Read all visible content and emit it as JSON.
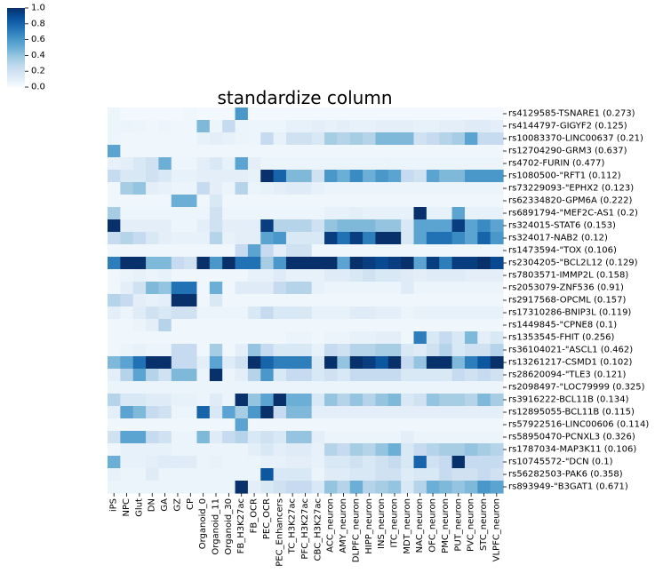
{
  "chart_data": {
    "type": "heatmap",
    "title": "standardize column",
    "colormap": "Blues",
    "colorbar": {
      "min": 0.0,
      "max": 1.0,
      "ticks": [
        "0.0",
        "0.2",
        "0.4",
        "0.6",
        "0.8",
        "1.0"
      ]
    },
    "columns": [
      "iPS",
      "NPC",
      "Glut",
      "DN",
      "GA",
      "GZ",
      "CP",
      "Organoid_0",
      "Organoid_11",
      "Organoid_30",
      "FB_H3K27ac",
      "FB_OCR",
      "PEC_OCR",
      "PEC_Enhancers",
      "TC_H3K27ac",
      "PFC_H3K27ac",
      "CBC_H3K27ac",
      "ACC_neuron",
      "AMY_neuron",
      "DLPFC_neuron",
      "HIPP_neuron",
      "INS_neuron",
      "ITC_neuron",
      "MDT_neuron",
      "NAC_neuron",
      "OFC_neuron",
      "PMC_neuron",
      "PUT_neuron",
      "PVC_neuron",
      "STC_neuron",
      "VLPFC_neuron"
    ],
    "rows": [
      "rs4129585-TSNARE1 (0.273)",
      "rs4144797-GIGYF2 (0.125)",
      "rs10083370-LINC00637 (0.21)",
      "rs12704290-GRM3 (0.637)",
      "rs4702-FURIN (0.477)",
      "rs1080500-\"RFT1 (0.112)",
      "rs73229093-\"EPHX2 (0.123)",
      "rs62334820-GPM6A (0.222)",
      "rs6891794-\"MEF2C-AS1 (0.2)",
      "rs324015-STAT6 (0.153)",
      "rs324017-NAB2 (0.12)",
      "rs1473594-\"TOX (0.106)",
      "rs2304205-\"BCL2L12 (0.129)",
      "rs7803571-IMMP2L (0.158)",
      "rs2053079-ZNF536 (0.91)",
      "rs2917568-OPCML (0.157)",
      "rs17310286-BNIP3L (0.119)",
      "rs1449845-\"CPNE8 (0.1)",
      "rs1353545-FHIT (0.256)",
      "rs36104021-\"ASCL1 (0.462)",
      "rs13261217-CSMD1 (0.102)",
      "rs28620094-\"TLE3 (0.121)",
      "rs2098497-\"LOC79999 (0.325)",
      "rs3916222-BCL11B (0.134)",
      "rs12895055-BCL11B (0.115)",
      "rs57922516-LINC00606 (0.114)",
      "rs58950470-PCNXL3 (0.326)",
      "rs1787034-MAP3K11 (0.106)",
      "rs10745572-\"DCN (0.1)",
      "rs56282503-PAK6 (0.358)",
      "rs893949-\"B3GAT1 (0.671)"
    ],
    "values": [
      [
        0.05,
        0.02,
        0.02,
        0.02,
        0.02,
        0.02,
        0.04,
        0.02,
        0.02,
        0.02,
        0.6,
        0.02,
        0.02,
        0.02,
        0.02,
        0.02,
        0.02,
        0.02,
        0.02,
        0.02,
        0.02,
        0.02,
        0.02,
        0.02,
        0.02,
        0.02,
        0.02,
        0.02,
        0.02,
        0.02,
        0.02
      ],
      [
        0.05,
        0.06,
        0.05,
        0.04,
        0.05,
        0.04,
        0.04,
        0.45,
        0.05,
        0.25,
        0.06,
        0.05,
        0.05,
        0.05,
        0.08,
        0.08,
        0.1,
        0.08,
        0.1,
        0.08,
        0.08,
        0.1,
        0.1,
        0.1,
        0.08,
        0.08,
        0.1,
        0.1,
        0.12,
        0.12,
        0.1
      ],
      [
        0.05,
        0.04,
        0.04,
        0.04,
        0.04,
        0.04,
        0.04,
        0.08,
        0.1,
        0.08,
        0.06,
        0.05,
        0.25,
        0.08,
        0.2,
        0.2,
        0.15,
        0.35,
        0.3,
        0.35,
        0.3,
        0.45,
        0.45,
        0.45,
        0.2,
        0.25,
        0.3,
        0.35,
        0.55,
        0.25,
        0.25
      ],
      [
        0.55,
        0.04,
        0.04,
        0.04,
        0.04,
        0.04,
        0.04,
        0.04,
        0.04,
        0.04,
        0.04,
        0.04,
        0.04,
        0.04,
        0.04,
        0.04,
        0.04,
        0.04,
        0.04,
        0.04,
        0.04,
        0.04,
        0.04,
        0.04,
        0.04,
        0.04,
        0.04,
        0.04,
        0.04,
        0.04,
        0.04
      ],
      [
        0.08,
        0.1,
        0.15,
        0.2,
        0.5,
        0.05,
        0.05,
        0.1,
        0.15,
        0.08,
        0.55,
        0.1,
        0.06,
        0.06,
        0.06,
        0.06,
        0.06,
        0.06,
        0.06,
        0.06,
        0.06,
        0.06,
        0.06,
        0.06,
        0.06,
        0.06,
        0.06,
        0.06,
        0.06,
        0.06,
        0.06
      ],
      [
        0.25,
        0.15,
        0.15,
        0.2,
        0.15,
        0.08,
        0.08,
        0.1,
        0.1,
        0.1,
        0.1,
        0.08,
        1.0,
        0.8,
        0.45,
        0.45,
        0.2,
        0.6,
        0.5,
        0.65,
        0.5,
        0.6,
        0.55,
        0.25,
        0.2,
        0.55,
        0.45,
        0.45,
        0.6,
        0.6,
        0.6
      ],
      [
        0.04,
        0.35,
        0.4,
        0.1,
        0.08,
        0.06,
        0.06,
        0.25,
        0.1,
        0.06,
        0.3,
        0.06,
        0.08,
        0.1,
        0.12,
        0.12,
        0.08,
        0.06,
        0.06,
        0.06,
        0.06,
        0.06,
        0.06,
        0.06,
        0.06,
        0.06,
        0.06,
        0.06,
        0.06,
        0.06,
        0.06
      ],
      [
        0.04,
        0.04,
        0.04,
        0.04,
        0.04,
        0.5,
        0.5,
        0.04,
        0.15,
        0.04,
        0.04,
        0.04,
        0.04,
        0.04,
        0.04,
        0.04,
        0.04,
        0.04,
        0.04,
        0.04,
        0.04,
        0.04,
        0.04,
        0.04,
        0.04,
        0.04,
        0.04,
        0.04,
        0.04,
        0.04,
        0.04
      ],
      [
        0.35,
        0.05,
        0.05,
        0.05,
        0.05,
        0.05,
        0.05,
        0.05,
        0.2,
        0.05,
        0.05,
        0.05,
        0.05,
        0.05,
        0.05,
        0.05,
        0.05,
        0.08,
        0.08,
        0.1,
        0.08,
        0.08,
        0.08,
        0.08,
        1.0,
        0.08,
        0.08,
        0.55,
        0.08,
        0.08,
        0.08
      ],
      [
        1.0,
        0.1,
        0.1,
        0.1,
        0.1,
        0.05,
        0.05,
        0.1,
        0.2,
        0.1,
        0.1,
        0.1,
        0.95,
        0.3,
        0.3,
        0.3,
        0.2,
        0.4,
        0.45,
        0.45,
        0.45,
        0.4,
        0.4,
        0.15,
        0.55,
        0.55,
        0.55,
        0.95,
        0.55,
        0.65,
        0.55
      ],
      [
        0.25,
        0.3,
        0.25,
        0.15,
        0.1,
        0.08,
        0.08,
        0.08,
        0.3,
        0.08,
        0.1,
        0.1,
        0.55,
        0.6,
        0.15,
        0.15,
        0.15,
        0.95,
        0.75,
        0.95,
        0.7,
        1.0,
        1.0,
        0.15,
        0.55,
        0.75,
        0.75,
        0.65,
        0.55,
        0.8,
        0.6
      ],
      [
        0.04,
        0.04,
        0.04,
        0.04,
        0.04,
        0.04,
        0.04,
        0.04,
        0.04,
        0.04,
        0.25,
        0.55,
        0.25,
        0.1,
        0.2,
        0.2,
        0.04,
        0.04,
        0.04,
        0.04,
        0.04,
        0.04,
        0.04,
        0.04,
        0.04,
        0.04,
        0.04,
        0.04,
        0.04,
        0.04,
        0.04
      ],
      [
        0.7,
        1.0,
        1.0,
        0.45,
        0.45,
        0.25,
        0.2,
        1.0,
        0.6,
        1.0,
        0.75,
        0.75,
        0.35,
        0.6,
        1.0,
        1.0,
        1.0,
        1.0,
        0.55,
        1.0,
        0.95,
        0.9,
        0.95,
        1.0,
        0.55,
        0.95,
        0.7,
        0.95,
        0.95,
        1.0,
        0.9
      ],
      [
        0.04,
        0.06,
        0.08,
        0.06,
        0.08,
        0.04,
        0.04,
        0.04,
        0.04,
        0.04,
        0.04,
        0.08,
        0.08,
        0.12,
        0.08,
        0.08,
        0.08,
        0.12,
        0.12,
        0.15,
        0.2,
        0.15,
        0.15,
        0.12,
        0.1,
        0.12,
        0.12,
        0.12,
        0.1,
        0.1,
        0.1
      ],
      [
        0.04,
        0.1,
        0.2,
        0.45,
        0.4,
        0.75,
        0.75,
        0.04,
        0.5,
        0.04,
        0.12,
        0.12,
        0.12,
        0.25,
        0.3,
        0.3,
        0.08,
        0.06,
        0.06,
        0.06,
        0.06,
        0.06,
        0.06,
        0.12,
        0.06,
        0.06,
        0.06,
        0.06,
        0.06,
        0.06,
        0.06
      ],
      [
        0.3,
        0.25,
        0.1,
        0.08,
        0.1,
        1.0,
        1.0,
        0.04,
        0.15,
        0.04,
        0.04,
        0.04,
        0.04,
        0.04,
        0.04,
        0.04,
        0.04,
        0.04,
        0.04,
        0.04,
        0.04,
        0.04,
        0.04,
        0.04,
        0.04,
        0.04,
        0.04,
        0.04,
        0.04,
        0.04,
        0.04
      ],
      [
        0.1,
        0.06,
        0.12,
        0.2,
        0.15,
        0.2,
        0.2,
        0.06,
        0.06,
        0.06,
        0.06,
        0.15,
        0.25,
        0.15,
        0.15,
        0.15,
        0.08,
        0.08,
        0.08,
        0.12,
        0.12,
        0.1,
        0.1,
        0.06,
        0.08,
        0.08,
        0.08,
        0.08,
        0.08,
        0.08,
        0.08
      ],
      [
        0.04,
        0.04,
        0.06,
        0.1,
        0.3,
        0.04,
        0.04,
        0.04,
        0.04,
        0.04,
        0.04,
        0.04,
        0.04,
        0.04,
        0.04,
        0.04,
        0.04,
        0.04,
        0.04,
        0.04,
        0.04,
        0.04,
        0.04,
        0.04,
        0.04,
        0.04,
        0.04,
        0.04,
        0.04,
        0.04,
        0.04
      ],
      [
        0.04,
        0.04,
        0.04,
        0.04,
        0.04,
        0.04,
        0.04,
        0.04,
        0.04,
        0.04,
        0.04,
        0.04,
        0.04,
        0.04,
        0.06,
        0.06,
        0.04,
        0.06,
        0.06,
        0.08,
        0.08,
        0.1,
        0.1,
        0.04,
        0.7,
        0.15,
        0.25,
        0.15,
        0.45,
        0.1,
        0.15
      ],
      [
        0.04,
        0.06,
        0.08,
        0.06,
        0.06,
        0.25,
        0.25,
        0.04,
        0.35,
        0.04,
        0.1,
        0.4,
        0.25,
        0.15,
        0.15,
        0.15,
        0.08,
        0.25,
        0.2,
        0.3,
        0.3,
        0.35,
        0.35,
        0.15,
        0.12,
        0.2,
        0.3,
        0.15,
        0.2,
        0.2,
        0.3
      ],
      [
        0.45,
        0.55,
        0.75,
        1.0,
        1.0,
        0.25,
        0.25,
        0.1,
        0.55,
        0.12,
        0.2,
        1.0,
        0.8,
        0.7,
        0.7,
        0.7,
        0.15,
        1.0,
        0.4,
        1.0,
        0.95,
        0.85,
        1.0,
        0.25,
        0.4,
        1.0,
        1.0,
        0.45,
        0.7,
        0.85,
        1.0
      ],
      [
        0.1,
        0.3,
        0.55,
        0.3,
        0.2,
        0.45,
        0.45,
        0.06,
        1.0,
        0.06,
        0.1,
        0.3,
        0.6,
        0.15,
        0.25,
        0.25,
        0.15,
        0.2,
        0.15,
        0.25,
        0.25,
        0.25,
        0.25,
        0.15,
        0.15,
        0.15,
        0.15,
        0.25,
        0.2,
        0.25,
        0.2
      ],
      [
        0.06,
        0.06,
        0.06,
        0.06,
        0.06,
        0.06,
        0.06,
        0.06,
        0.06,
        0.06,
        0.06,
        0.06,
        0.06,
        0.06,
        0.06,
        0.06,
        0.06,
        0.06,
        0.06,
        0.06,
        0.06,
        0.06,
        0.06,
        0.06,
        0.06,
        0.06,
        0.06,
        0.06,
        0.06,
        0.06,
        0.06
      ],
      [
        0.3,
        0.15,
        0.15,
        0.12,
        0.12,
        0.08,
        0.08,
        0.06,
        0.12,
        0.06,
        1.0,
        0.4,
        0.55,
        1.0,
        0.5,
        0.5,
        0.15,
        0.4,
        0.3,
        0.4,
        0.3,
        0.4,
        0.45,
        0.15,
        0.2,
        0.4,
        0.35,
        0.35,
        0.3,
        0.45,
        0.35
      ],
      [
        0.1,
        0.55,
        0.45,
        0.25,
        0.2,
        0.06,
        0.06,
        0.8,
        0.15,
        0.55,
        0.35,
        0.6,
        1.0,
        0.25,
        0.45,
        0.45,
        0.1,
        0.1,
        0.1,
        0.1,
        0.1,
        0.1,
        0.1,
        0.1,
        0.1,
        0.1,
        0.1,
        0.1,
        0.1,
        0.1,
        0.1
      ],
      [
        0.04,
        0.04,
        0.04,
        0.04,
        0.04,
        0.04,
        0.04,
        0.04,
        0.04,
        0.04,
        0.55,
        0.04,
        0.04,
        0.04,
        0.04,
        0.04,
        0.04,
        0.04,
        0.04,
        0.04,
        0.04,
        0.04,
        0.04,
        0.04,
        0.04,
        0.04,
        0.04,
        0.04,
        0.04,
        0.04,
        0.04
      ],
      [
        0.2,
        0.55,
        0.55,
        0.25,
        0.2,
        0.06,
        0.06,
        0.45,
        0.12,
        0.25,
        0.3,
        0.15,
        0.2,
        0.15,
        0.4,
        0.4,
        0.1,
        0.06,
        0.06,
        0.06,
        0.06,
        0.06,
        0.06,
        0.1,
        0.06,
        0.06,
        0.06,
        0.06,
        0.06,
        0.06,
        0.06
      ],
      [
        0.04,
        0.08,
        0.08,
        0.08,
        0.08,
        0.06,
        0.06,
        0.06,
        0.06,
        0.06,
        0.06,
        0.1,
        0.15,
        0.1,
        0.12,
        0.12,
        0.08,
        0.3,
        0.25,
        0.35,
        0.3,
        0.4,
        0.5,
        0.15,
        0.25,
        0.3,
        0.35,
        0.35,
        0.4,
        0.35,
        0.3
      ],
      [
        0.5,
        0.08,
        0.08,
        0.1,
        0.12,
        0.12,
        0.12,
        0.06,
        0.08,
        0.06,
        0.06,
        0.06,
        0.08,
        0.08,
        0.1,
        0.1,
        0.08,
        0.15,
        0.15,
        0.2,
        0.15,
        0.2,
        0.25,
        0.15,
        0.8,
        0.2,
        0.25,
        1.0,
        0.25,
        0.25,
        0.25
      ],
      [
        0.08,
        0.06,
        0.06,
        0.12,
        0.06,
        0.06,
        0.06,
        0.06,
        0.06,
        0.06,
        0.06,
        0.06,
        0.85,
        0.15,
        0.15,
        0.15,
        0.06,
        0.12,
        0.12,
        0.15,
        0.15,
        0.2,
        0.2,
        0.12,
        0.15,
        0.15,
        0.25,
        0.2,
        0.2,
        0.25,
        0.2
      ],
      [
        0.06,
        0.06,
        0.06,
        0.06,
        0.06,
        0.06,
        0.06,
        0.06,
        0.06,
        0.06,
        1.0,
        0.1,
        0.15,
        0.2,
        0.25,
        0.25,
        0.15,
        0.4,
        0.3,
        0.5,
        0.3,
        0.35,
        0.4,
        0.15,
        0.3,
        0.5,
        0.45,
        0.4,
        0.45,
        0.6,
        0.55
      ]
    ]
  }
}
